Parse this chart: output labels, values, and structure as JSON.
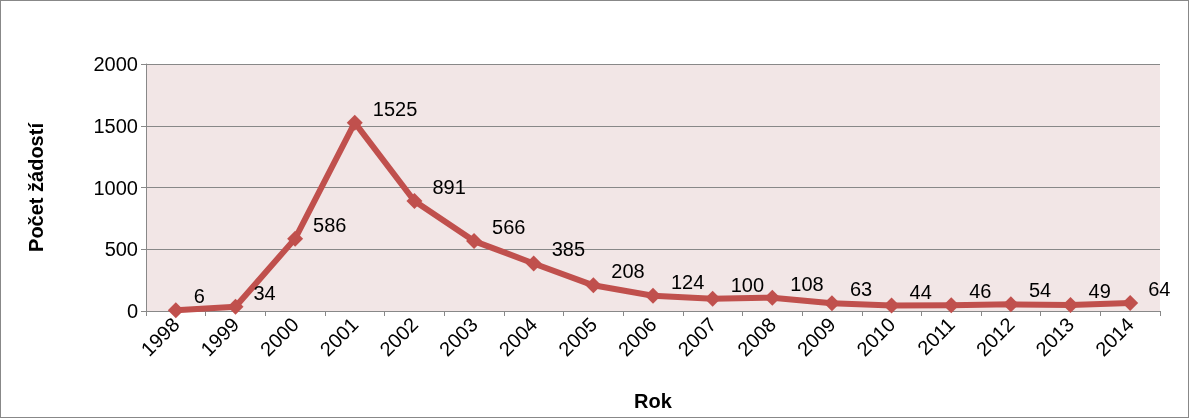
{
  "chart_data": {
    "type": "line",
    "xlabel": "Rok",
    "ylabel": "Počet žádostí",
    "categories": [
      "1998",
      "1999",
      "2000",
      "2001",
      "2002",
      "2003",
      "2004",
      "2005",
      "2006",
      "2007",
      "2008",
      "2009",
      "2010",
      "2011",
      "2012",
      "2013",
      "2014"
    ],
    "series": [
      {
        "color": "#c0504d",
        "values": [
          6,
          34,
          586,
          1525,
          891,
          566,
          385,
          208,
          124,
          100,
          108,
          63,
          44,
          46,
          54,
          49,
          64
        ]
      }
    ],
    "ylim": [
      0,
      2000
    ],
    "yticks": [
      0,
      500,
      1000,
      1500,
      2000
    ],
    "grid": "y",
    "marker": "diamond",
    "line_style": "solid",
    "data_labels": true
  }
}
